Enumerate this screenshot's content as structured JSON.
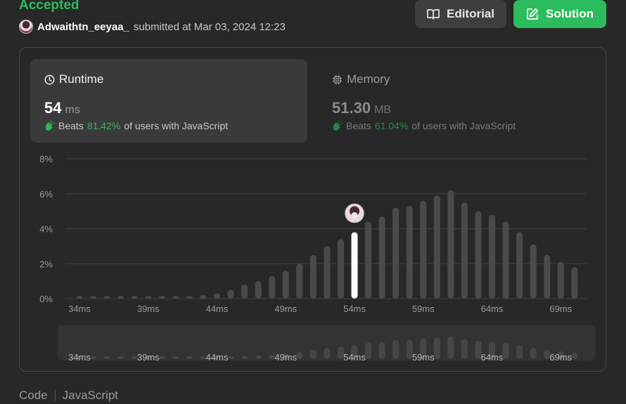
{
  "header": {
    "status": "Accepted",
    "username": "Adwaithtn_eeyaa_",
    "submitted_text": "submitted at Mar 03, 2024 12:23"
  },
  "buttons": {
    "editorial": "Editorial",
    "solution": "Solution"
  },
  "runtime": {
    "title": "Runtime",
    "value": "54",
    "unit": "ms",
    "beats_label": "Beats",
    "beats_pct": "81.42%",
    "beats_suffix": "of users with JavaScript"
  },
  "memory": {
    "title": "Memory",
    "value": "51.30",
    "unit": "MB",
    "beats_label": "Beats",
    "beats_pct": "61.04%",
    "beats_suffix": "of users with JavaScript"
  },
  "footer": {
    "code_label": "Code",
    "language": "JavaScript"
  },
  "colors": {
    "accent": "#2cbb5d",
    "bar": "#4a4a4a",
    "selected_bar": "#ffffff",
    "background": "#282828"
  },
  "chart_data": {
    "type": "bar",
    "ylim": [
      0,
      8
    ],
    "y_ticks": [
      "0%",
      "2%",
      "4%",
      "6%",
      "8%"
    ],
    "x_ticks": [
      "34ms",
      "39ms",
      "44ms",
      "49ms",
      "54ms",
      "59ms",
      "64ms",
      "69ms"
    ],
    "selected_index": 20,
    "values": [
      0.15,
      0.15,
      0.15,
      0.15,
      0.15,
      0.15,
      0.15,
      0.15,
      0.15,
      0.2,
      0.3,
      0.5,
      0.8,
      1.0,
      1.3,
      1.6,
      2.0,
      2.5,
      3.0,
      3.4,
      3.8,
      4.4,
      4.7,
      5.2,
      5.3,
      5.6,
      5.9,
      6.2,
      5.5,
      5.0,
      4.8,
      4.4,
      3.8,
      3.1,
      2.5,
      2.1,
      1.8
    ]
  }
}
